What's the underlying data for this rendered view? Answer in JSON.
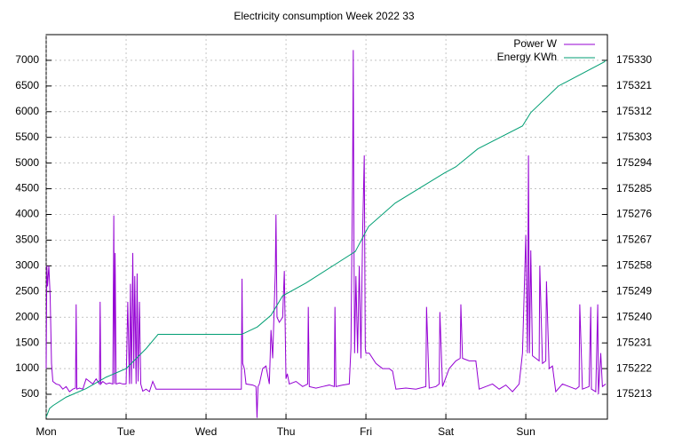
{
  "chart_data": {
    "type": "line",
    "title": "Electricity consumption Week 2022 33",
    "xlim": [
      0,
      168.5
    ],
    "xticks": [
      {
        "value": 0,
        "label": "Mon"
      },
      {
        "value": 24,
        "label": "Tue"
      },
      {
        "value": 48,
        "label": "Wed"
      },
      {
        "value": 72,
        "label": "Thu"
      },
      {
        "value": 96,
        "label": "Fri"
      },
      {
        "value": 120,
        "label": "Sat"
      },
      {
        "value": 144,
        "label": "Sun"
      }
    ],
    "ylim": [
      16,
      7500
    ],
    "yticks": [
      500,
      1000,
      1500,
      2000,
      2500,
      3000,
      3500,
      4000,
      4500,
      5000,
      5500,
      6000,
      6500,
      7000
    ],
    "y2lim": [
      175204.3,
      175339
    ],
    "y2ticks": [
      175213,
      175222,
      175231,
      175240,
      175249,
      175258,
      175267,
      175276,
      175285,
      175294,
      175303,
      175312,
      175321,
      175330
    ],
    "grid": true,
    "legend": "top-right",
    "series": [
      {
        "name": "Power W",
        "color": "#9400d3",
        "x": [
          0,
          0.2,
          0.4,
          0.8,
          1.2,
          1.6,
          2,
          3,
          4,
          5,
          6,
          7,
          8,
          8.8,
          9,
          9.2,
          10,
          11,
          12,
          13,
          14,
          15,
          16,
          16.2,
          16.4,
          17,
          18,
          19,
          20,
          20.3,
          20.5,
          20.7,
          21,
          22,
          23,
          24,
          24.5,
          25,
          25.3,
          25.6,
          26,
          26.3,
          26.6,
          27,
          27.3,
          27.6,
          28,
          28.4,
          29,
          30,
          31,
          32,
          33,
          34,
          40,
          46,
          52,
          58,
          58.6,
          58.8,
          59,
          59.5,
          60,
          62,
          63,
          63.3,
          63.6,
          64,
          65,
          66,
          67,
          67.5,
          68,
          68.8,
          69,
          69.3,
          70,
          71,
          71.5,
          72,
          72.4,
          73,
          75,
          77,
          78.5,
          78.7,
          79,
          81,
          83,
          85,
          86.5,
          86.7,
          87,
          89,
          91,
          91.5,
          92,
          92.2,
          92.4,
          92.6,
          93,
          93.5,
          94,
          94.5,
          95,
          95.5,
          95.8,
          96,
          97,
          99,
          101,
          103,
          104,
          105,
          108,
          111,
          114,
          114.2,
          115,
          117,
          118,
          118.2,
          119,
          121,
          123,
          124.3,
          124.5,
          125,
          127,
          129,
          130,
          132,
          134,
          136,
          138,
          140,
          142,
          143,
          144,
          144.5,
          144.8,
          145.1,
          145.5,
          146,
          147,
          148,
          148.2,
          149,
          150,
          150.2,
          151,
          152,
          153,
          155,
          157,
          159,
          160,
          160.2,
          161,
          163,
          163.5,
          163.7,
          165,
          165.6,
          165.8,
          166.5,
          167,
          168
        ],
        "values": [
          1000,
          3000,
          2600,
          3000,
          2400,
          1100,
          750,
          700,
          680,
          600,
          650,
          550,
          600,
          620,
          2250,
          600,
          620,
          600,
          800,
          750,
          700,
          800,
          700,
          2300,
          700,
          750,
          700,
          720,
          700,
          3980,
          700,
          3250,
          700,
          720,
          700,
          700,
          2300,
          700,
          2650,
          700,
          3250,
          1000,
          2800,
          700,
          2850,
          750,
          2300,
          700,
          560,
          600,
          550,
          750,
          600,
          600,
          600,
          600,
          600,
          600,
          600,
          2750,
          1100,
          1000,
          700,
          680,
          650,
          40,
          650,
          700,
          1000,
          1050,
          700,
          1750,
          1200,
          2900,
          4000,
          2000,
          1900,
          2000,
          2900,
          800,
          900,
          700,
          750,
          650,
          700,
          2200,
          650,
          620,
          650,
          680,
          650,
          2200,
          650,
          680,
          700,
          1400,
          4800,
          7200,
          3500,
          1300,
          2800,
          1300,
          3000,
          1200,
          3600,
          5150,
          1400,
          1300,
          1300,
          1100,
          1000,
          1000,
          950,
          600,
          620,
          600,
          650,
          2200,
          620,
          650,
          700,
          2100,
          650,
          1000,
          1150,
          1200,
          2250,
          1200,
          1150,
          1150,
          600,
          650,
          700,
          600,
          680,
          550,
          700,
          1300,
          3600,
          1300,
          5150,
          1300,
          3300,
          1250,
          1200,
          1150,
          3000,
          1100,
          1150,
          2700,
          1000,
          1050,
          550,
          700,
          650,
          600,
          650,
          2250,
          600,
          650,
          2200,
          600,
          550,
          2250,
          500,
          1300,
          650,
          700
        ]
      },
      {
        "name": "Energy KWh",
        "color": "#009e73",
        "axis": "y2",
        "x": [
          0,
          1,
          2,
          6,
          12,
          18,
          24,
          30,
          33.6,
          58.7,
          63.4,
          67.5,
          71,
          78,
          92.8,
          96.8,
          104.8,
          119.5,
          123,
          129.6,
          143,
          145.5,
          153.8,
          167.5,
          168
        ],
        "values": [
          175205,
          175208,
          175209,
          175212,
          175215,
          175219,
          175222,
          175229,
          175234,
          175234,
          175236.6,
          175240.7,
          175247.5,
          175252,
          175263,
          175271.8,
          175280,
          175290.5,
          175292.7,
          175299,
          175307,
          175311.7,
          175321,
          175329.4,
          175330
        ]
      }
    ]
  }
}
